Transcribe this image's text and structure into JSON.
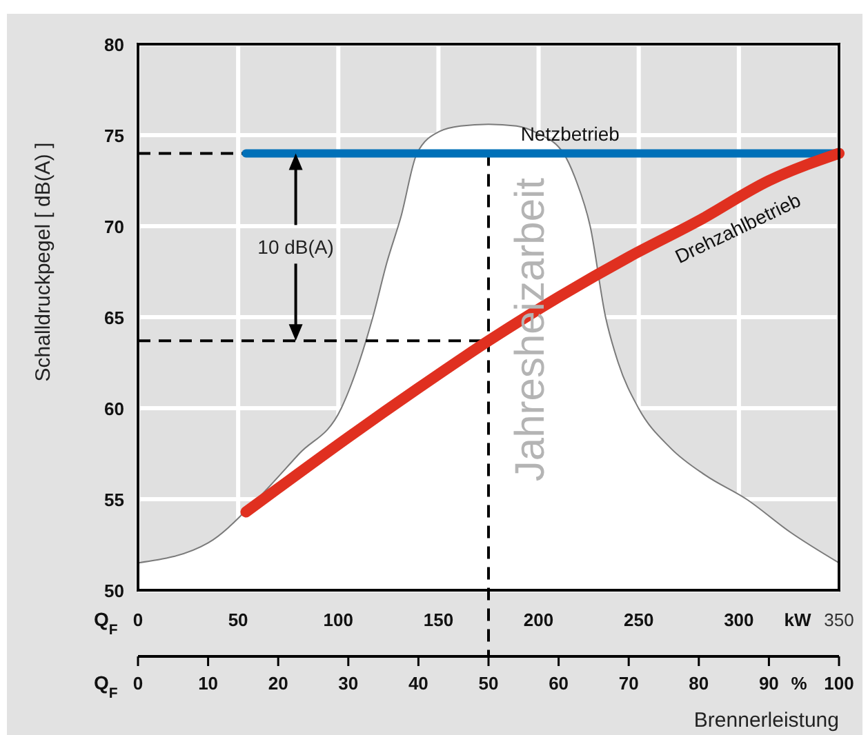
{
  "chart_data": {
    "type": "line",
    "xlabel": "Brennerleistung",
    "ylabel": "Schalldruckpegel [ dB(A) ]",
    "xlim": [
      0,
      100
    ],
    "xticks": [
      0,
      10,
      20,
      30,
      40,
      50,
      60,
      70,
      80,
      90,
      100
    ],
    "x2lim": [
      0,
      350
    ],
    "x2ticks": [
      0,
      50,
      100,
      150,
      200,
      250,
      300,
      350
    ],
    "ylim": [
      50,
      80
    ],
    "yticks": [
      50,
      55,
      60,
      65,
      70,
      75,
      80
    ],
    "grid": true,
    "legend": false,
    "marker": "none",
    "series": [
      {
        "name": "Jahresheizarbeit",
        "type": "area",
        "color": "#ffffff",
        "x": [
          0,
          10,
          17,
          23,
          29,
          33.5,
          35.5,
          37.5,
          39.8,
          43,
          46,
          50,
          54,
          57,
          60.7,
          62.5,
          64.5,
          66.7,
          68.5,
          71.4,
          76,
          81,
          86.8,
          93,
          100
        ],
        "values": [
          51.5,
          52.6,
          55,
          57.5,
          60,
          65,
          68,
          70.5,
          74,
          75.2,
          75.5,
          75.6,
          75.5,
          75.1,
          74,
          72.5,
          70,
          65,
          62.5,
          60,
          57.8,
          56.3,
          55,
          53.2,
          51.5
        ]
      },
      {
        "name": "Netzbetrieb",
        "color": "#0070b8",
        "x": [
          15.4,
          100
        ],
        "values": [
          74,
          74
        ]
      },
      {
        "name": "Drehzahlbetrieb",
        "color": "#e03020",
        "x": [
          15.4,
          20,
          30,
          40,
          50,
          60,
          70,
          80,
          90,
          100
        ],
        "values": [
          54.3,
          55.6,
          58.4,
          61.1,
          63.7,
          66.1,
          68.3,
          70.3,
          72.5,
          74
        ]
      }
    ],
    "ref_lines": [
      {
        "axis": "y",
        "value": 74,
        "line_style": "dashed",
        "color": "#000000"
      },
      {
        "axis": "y",
        "value": 63.7,
        "line_style": "dashed",
        "color": "#000000"
      },
      {
        "axis": "x",
        "value": 50,
        "line_style": "dashed",
        "color": "#000000"
      }
    ],
    "annotations": [
      "10 dB(A)",
      "Q$_{F}$",
      "Q$_{F}$",
      "kW",
      "%"
    ]
  }
}
